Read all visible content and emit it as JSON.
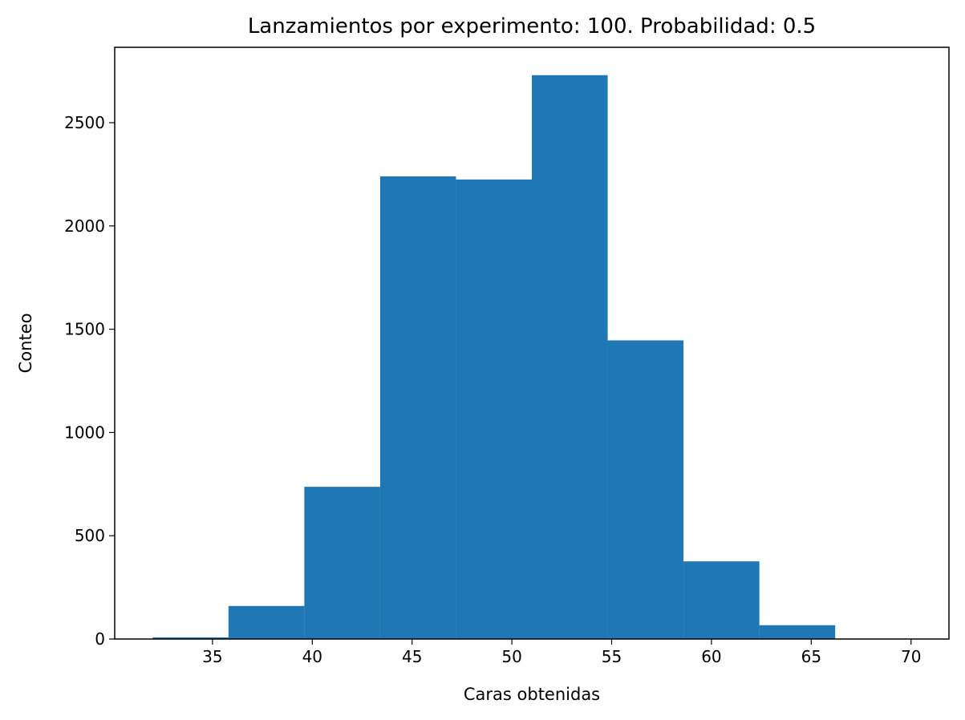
{
  "chart_data": {
    "type": "bar",
    "title": "Lanzamientos por experimento: 100. Probabilidad: 0.5",
    "xlabel": "Caras obtenidas",
    "ylabel": "Conteo",
    "xlim": [
      30.1,
      71.9
    ],
    "ylim": [
      0,
      2865
    ],
    "xticks": [
      "35",
      "40",
      "45",
      "50",
      "55",
      "60",
      "65",
      "70"
    ],
    "yticks": [
      "0",
      "500",
      "1000",
      "1500",
      "2000",
      "2500"
    ],
    "bin_edges": [
      32.0,
      35.8,
      39.6,
      43.4,
      47.2,
      51.0,
      54.8,
      58.6,
      62.4,
      66.2,
      70.0
    ],
    "values": [
      8,
      160,
      737,
      2240,
      2225,
      2730,
      1446,
      376,
      67,
      2
    ],
    "color": "#1f77b4",
    "grid": false,
    "legend": false
  }
}
